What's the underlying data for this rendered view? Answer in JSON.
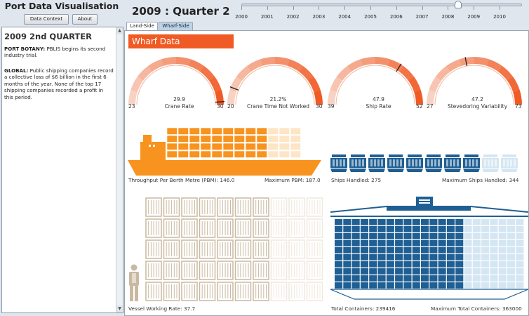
{
  "app": {
    "title": "Port Data Visualisation"
  },
  "buttons": {
    "data_context": "Data Context",
    "about": "About"
  },
  "sidebar": {
    "heading": "2009 2nd QUARTER",
    "paragraphs": [
      {
        "label": "PORT BOTANY:",
        "text": "PBLIS begins its second industry trial."
      },
      {
        "label": "GLOBAL:",
        "text": "Public shipping companies record a collective loss of $6 billion in the first 6 months of the year. None of the top 17 shipping companies recorded a profit in this period."
      }
    ],
    "scroll_up_glyph": "▲",
    "scroll_down_glyph": "▼"
  },
  "header": {
    "period": "2009 : Quarter 2"
  },
  "timeline": {
    "years": [
      "2000",
      "2001",
      "2002",
      "2003",
      "2004",
      "2005",
      "2006",
      "2007",
      "2008",
      "2009",
      "2010"
    ],
    "position": 0.84
  },
  "tabs": [
    {
      "label": "Land-Side"
    },
    {
      "label": "Wharf-Side"
    }
  ],
  "main": {
    "section_title": "Wharf Data"
  },
  "gauges": [
    {
      "label": "Crane Rate",
      "value": "29.9",
      "min": "23",
      "max": "30",
      "fraction": 0.98
    },
    {
      "label": "Crane Time Not Worked",
      "value": "21.2%",
      "min": "20",
      "max": "30",
      "fraction": 0.12
    },
    {
      "label": "Ship Rate",
      "value": "47.9",
      "min": "39",
      "max": "52",
      "fraction": 0.68
    },
    {
      "label": "Stevedoring Variability",
      "value": "47.2",
      "min": "27",
      "max": "73",
      "fraction": 0.44
    }
  ],
  "throughput": {
    "label": "Throughput Per Berth Metre (PBM): 146.0",
    "max_label": "Maximum PBM: 187.0",
    "value": 146.0,
    "max": 187.0
  },
  "ships": {
    "label": "Ships Handled: 275",
    "max_label": "Maximum Ships Handled: 344",
    "value": 275,
    "max": 344
  },
  "vessel_working": {
    "label": "Vessel Working Rate: 37.7"
  },
  "containers": {
    "label": "Total Containers: 239416",
    "max_label": "Maximum Total Containers: 363000",
    "value": 239416,
    "max": 363000
  },
  "colors": {
    "orange": "#f7931e",
    "orange_light": "#fde5c6",
    "accent": "#f05a24",
    "gauge_light": "#f7cbb5",
    "navy": "#1f5f93",
    "navy_light": "#d5e6f3",
    "tan": "#c9b9a0",
    "tan_light": "#efe8de"
  }
}
